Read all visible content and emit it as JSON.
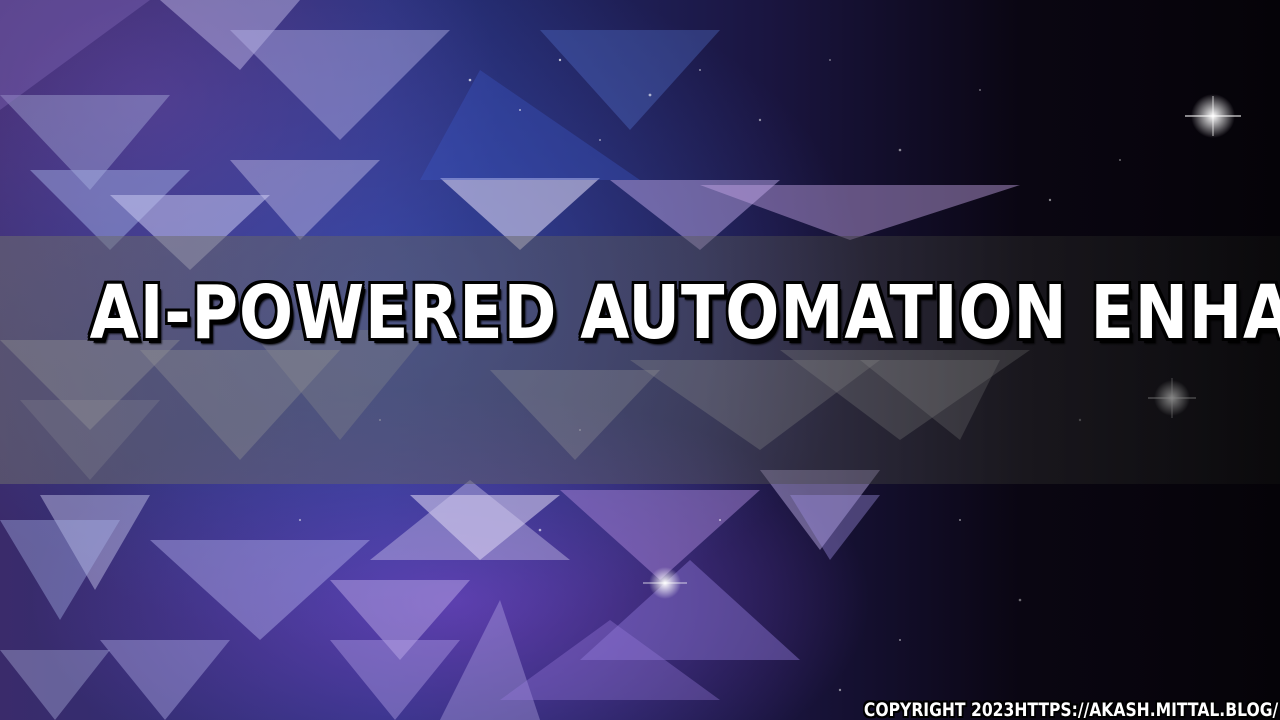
{
  "headline": {
    "text": "AI-POWERED AUTOMATION ENHANCES"
  },
  "footer": {
    "copyright": "COPYRIGHT 2023HTTPS://AKASH.MITTAL.BLOG/"
  },
  "background": {
    "description_icon": "abstract-triangles-starfield",
    "colors": {
      "purple": "#6a4fb0",
      "blue": "#2c3a8f",
      "lavender": "#b9a9e8",
      "dark": "#06040c"
    }
  }
}
